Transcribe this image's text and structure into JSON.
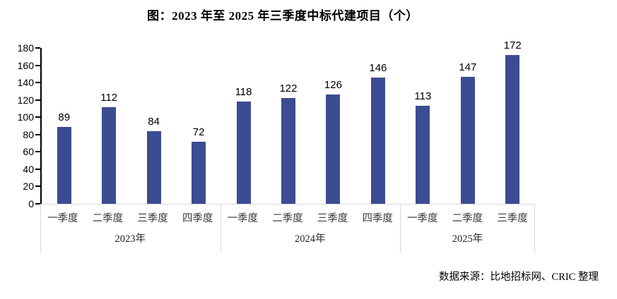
{
  "title": "图：2023 年至 2025 年三季度中标代建项目（个）",
  "source": "数据来源：比地招标网、CRIC 整理",
  "colors": {
    "bar": "#3B4C92",
    "axis": "#000000",
    "grid_border": "#D9D9D9",
    "text": "#000000"
  },
  "chart_data": {
    "type": "bar",
    "title": "图：2023 年至 2025 年三季度中标代建项目（个）",
    "groups": [
      {
        "year": "2023年",
        "categories": [
          "一季度",
          "二季度",
          "三季度",
          "四季度"
        ],
        "values": [
          89,
          112,
          84,
          72
        ]
      },
      {
        "year": "2024年",
        "categories": [
          "一季度",
          "二季度",
          "三季度",
          "四季度"
        ],
        "values": [
          118,
          122,
          126,
          146
        ]
      },
      {
        "year": "2025年",
        "categories": [
          "一季度",
          "二季度",
          "三季度"
        ],
        "values": [
          113,
          147,
          172
        ]
      }
    ],
    "ylim": [
      0,
      180
    ],
    "yticks": [
      0,
      20,
      40,
      60,
      80,
      100,
      120,
      140,
      160,
      180
    ],
    "bar_color": "#3B4C92",
    "grid": false,
    "legend": false,
    "data_labels": true,
    "source_note": "数据来源：比地招标网、CRIC 整理"
  }
}
